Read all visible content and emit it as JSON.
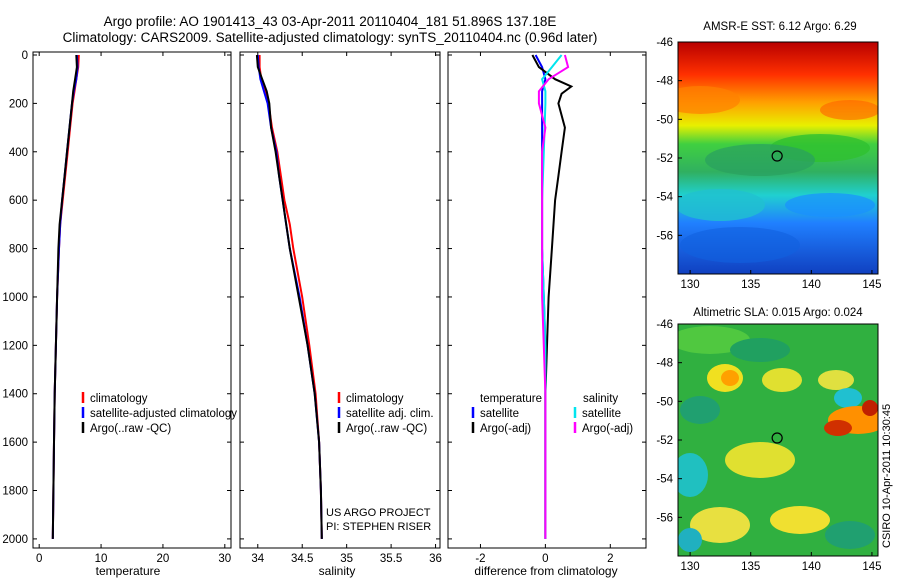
{
  "header": {
    "line1": "Argo profile: AO 1901413_43 03-Apr-2011 20110404_181 51.896S 137.18E",
    "line2": "Climatology: CARS2009. Satellite-adjusted climatology: synTS_20110404.nc (0.96d later)"
  },
  "credit": "CSIRO 10-Apr-2011 10:30:45",
  "colors": {
    "climatology": "#ff0000",
    "satellite": "#0000ff",
    "argo": "#000000",
    "sat_salinity": "#00e5ee",
    "argo_salinity": "#ff00ff"
  },
  "chart_data": [
    {
      "type": "line",
      "name": "temperature-profile",
      "xlabel": "temperature",
      "ylabel": "",
      "xlim": [
        -1,
        31
      ],
      "ylim": [
        2050,
        0
      ],
      "x_ticks": [
        0,
        10,
        20,
        30
      ],
      "y_ticks": [
        0,
        200,
        400,
        600,
        800,
        1000,
        1200,
        1400,
        1600,
        1800,
        2000
      ],
      "legend": [
        "climatology",
        "satellite-adjusted climatology",
        "Argo(..raw -QC)"
      ],
      "legend_position": "lower-right",
      "series": [
        {
          "name": "climatology",
          "color": "#ff0000",
          "points": [
            [
              6.4,
              0
            ],
            [
              6.3,
              50
            ],
            [
              6.0,
              100
            ],
            [
              5.7,
              150
            ],
            [
              5.4,
              200
            ],
            [
              5.0,
              300
            ],
            [
              4.6,
              400
            ],
            [
              4.2,
              500
            ],
            [
              3.8,
              600
            ],
            [
              3.4,
              700
            ],
            [
              3.2,
              800
            ],
            [
              2.9,
              1000
            ],
            [
              2.7,
              1200
            ],
            [
              2.5,
              1400
            ],
            [
              2.4,
              1600
            ],
            [
              2.3,
              1800
            ],
            [
              2.2,
              2000
            ]
          ]
        },
        {
          "name": "satellite-adjusted climatology",
          "color": "#0000ff",
          "points": [
            [
              6.1,
              0
            ],
            [
              6.2,
              50
            ],
            [
              6.0,
              100
            ],
            [
              5.6,
              150
            ],
            [
              5.3,
              200
            ],
            [
              4.9,
              300
            ],
            [
              4.5,
              400
            ],
            [
              4.1,
              500
            ],
            [
              3.7,
              600
            ],
            [
              3.4,
              700
            ],
            [
              3.2,
              800
            ],
            [
              2.9,
              1000
            ],
            [
              2.7,
              1200
            ],
            [
              2.5,
              1400
            ],
            [
              2.4,
              1600
            ],
            [
              2.3,
              1800
            ],
            [
              2.2,
              2000
            ]
          ]
        },
        {
          "name": "Argo(..raw -QC)",
          "color": "#000000",
          "points": [
            [
              6.0,
              0
            ],
            [
              6.1,
              50
            ],
            [
              5.8,
              100
            ],
            [
              5.5,
              150
            ],
            [
              5.3,
              200
            ],
            [
              4.9,
              300
            ],
            [
              4.5,
              400
            ],
            [
              4.1,
              500
            ],
            [
              3.7,
              600
            ],
            [
              3.3,
              700
            ],
            [
              3.1,
              800
            ],
            [
              2.9,
              1000
            ],
            [
              2.7,
              1200
            ],
            [
              2.5,
              1400
            ],
            [
              2.4,
              1600
            ],
            [
              2.3,
              1800
            ],
            [
              2.2,
              2000
            ]
          ]
        }
      ]
    },
    {
      "type": "line",
      "name": "salinity-profile",
      "xlabel": "salinity",
      "ylabel": "",
      "xlim": [
        33.8,
        36.05
      ],
      "ylim": [
        2050,
        0
      ],
      "x_ticks": [
        34,
        34.5,
        35,
        35.5,
        36
      ],
      "legend": [
        "climatology",
        "satellite adj. clim.",
        "Argo(..raw -QC)"
      ],
      "legend_position": "lower-right",
      "annotations": [
        "US ARGO PROJECT",
        "PI: STEPHEN RISER"
      ],
      "series": [
        {
          "name": "climatology",
          "color": "#ff0000",
          "points": [
            [
              34.02,
              0
            ],
            [
              34.02,
              50
            ],
            [
              34.04,
              100
            ],
            [
              34.08,
              150
            ],
            [
              34.12,
              200
            ],
            [
              34.16,
              300
            ],
            [
              34.22,
              400
            ],
            [
              34.26,
              500
            ],
            [
              34.3,
              600
            ],
            [
              34.36,
              700
            ],
            [
              34.4,
              800
            ],
            [
              34.5,
              1000
            ],
            [
              34.58,
              1200
            ],
            [
              34.65,
              1400
            ],
            [
              34.69,
              1600
            ],
            [
              34.71,
              1800
            ],
            [
              34.72,
              2000
            ]
          ]
        },
        {
          "name": "satellite adj. clim.",
          "color": "#0000ff",
          "points": [
            [
              34.0,
              0
            ],
            [
              34.01,
              50
            ],
            [
              34.03,
              100
            ],
            [
              34.07,
              150
            ],
            [
              34.11,
              200
            ],
            [
              34.15,
              300
            ],
            [
              34.21,
              400
            ],
            [
              34.24,
              500
            ],
            [
              34.28,
              600
            ],
            [
              34.32,
              700
            ],
            [
              34.36,
              800
            ],
            [
              34.47,
              1000
            ],
            [
              34.56,
              1200
            ],
            [
              34.64,
              1400
            ],
            [
              34.69,
              1600
            ],
            [
              34.71,
              1800
            ],
            [
              34.72,
              2000
            ]
          ]
        },
        {
          "name": "Argo(..raw -QC)",
          "color": "#000000",
          "points": [
            [
              33.99,
              0
            ],
            [
              34.0,
              50
            ],
            [
              34.05,
              100
            ],
            [
              34.1,
              150
            ],
            [
              34.13,
              200
            ],
            [
              34.15,
              300
            ],
            [
              34.2,
              400
            ],
            [
              34.24,
              500
            ],
            [
              34.28,
              600
            ],
            [
              34.32,
              700
            ],
            [
              34.36,
              800
            ],
            [
              34.46,
              1000
            ],
            [
              34.56,
              1200
            ],
            [
              34.64,
              1400
            ],
            [
              34.69,
              1600
            ],
            [
              34.71,
              1800
            ],
            [
              34.72,
              2000
            ]
          ]
        }
      ]
    },
    {
      "type": "line",
      "name": "difference-profile",
      "xlabel": "difference from climatology",
      "ylabel": "",
      "xlim": [
        -3,
        3.1
      ],
      "ylim": [
        2050,
        0
      ],
      "x_ticks": [
        -2,
        0,
        2
      ],
      "legend_groups": [
        {
          "heading": "temperature",
          "entries": [
            "satellite",
            "Argo(-adj)"
          ]
        },
        {
          "heading": "salinity",
          "entries": [
            "satellite",
            "Argo(-adj)"
          ]
        }
      ],
      "legend_position": "lower-center",
      "series": [
        {
          "name": "temperature satellite",
          "color": "#0000ff",
          "points": [
            [
              -0.3,
              0
            ],
            [
              -0.1,
              50
            ],
            [
              0.0,
              100
            ],
            [
              -0.1,
              150
            ],
            [
              -0.1,
              200
            ],
            [
              -0.1,
              400
            ],
            [
              -0.1,
              600
            ],
            [
              -0.1,
              800
            ],
            [
              -0.05,
              1000
            ],
            [
              0,
              1200
            ],
            [
              0,
              1400
            ],
            [
              0,
              1600
            ],
            [
              0,
              1800
            ],
            [
              0,
              2000
            ]
          ]
        },
        {
          "name": "temperature Argo(-adj)",
          "color": "#000000",
          "points": [
            [
              -0.4,
              0
            ],
            [
              -0.2,
              50
            ],
            [
              0.3,
              100
            ],
            [
              0.8,
              130
            ],
            [
              0.5,
              160
            ],
            [
              0.4,
              200
            ],
            [
              0.6,
              300
            ],
            [
              0.5,
              400
            ],
            [
              0.4,
              500
            ],
            [
              0.3,
              600
            ],
            [
              0.2,
              800
            ],
            [
              0.1,
              1000
            ],
            [
              0.05,
              1200
            ],
            [
              0,
              1400
            ],
            [
              0,
              1600
            ],
            [
              0,
              1800
            ],
            [
              0,
              2000
            ]
          ]
        },
        {
          "name": "salinity satellite",
          "color": "#00e5ee",
          "points": [
            [
              0.5,
              0
            ],
            [
              0.2,
              50
            ],
            [
              -0.1,
              100
            ],
            [
              0.0,
              150
            ],
            [
              0.0,
              200
            ],
            [
              -0.05,
              400
            ],
            [
              -0.1,
              600
            ],
            [
              -0.1,
              800
            ],
            [
              -0.05,
              1000
            ],
            [
              0,
              1200
            ],
            [
              0,
              1400
            ],
            [
              0,
              1600
            ],
            [
              0,
              1800
            ],
            [
              0,
              2000
            ]
          ]
        },
        {
          "name": "salinity Argo(-adj)",
          "color": "#ff00ff",
          "points": [
            [
              0.6,
              0
            ],
            [
              0.7,
              50
            ],
            [
              0.1,
              100
            ],
            [
              -0.2,
              150
            ],
            [
              -0.2,
              200
            ],
            [
              0.0,
              300
            ],
            [
              -0.1,
              400
            ],
            [
              -0.1,
              600
            ],
            [
              -0.1,
              800
            ],
            [
              -0.1,
              1000
            ],
            [
              -0.05,
              1200
            ],
            [
              0,
              1400
            ],
            [
              0,
              1600
            ],
            [
              0,
              1800
            ],
            [
              0,
              2000
            ]
          ]
        }
      ]
    },
    {
      "type": "heatmap",
      "name": "sst-map",
      "title": "AMSR-E SST: 6.12 Argo: 6.29",
      "xlim": [
        129,
        145.5
      ],
      "ylim": [
        -58,
        -46
      ],
      "x_ticks": [
        130,
        135,
        140,
        145
      ],
      "y_ticks": [
        -46,
        -48,
        -50,
        -52,
        -54,
        -56
      ],
      "marker": {
        "lon": 137.18,
        "lat": -51.896
      }
    },
    {
      "type": "heatmap",
      "name": "sla-map",
      "title": "Altimetric SLA: 0.015 Argo: 0.024",
      "xlim": [
        129,
        145.5
      ],
      "ylim": [
        -58,
        -46
      ],
      "x_ticks": [
        130,
        135,
        140,
        145
      ],
      "y_ticks": [
        -46,
        -48,
        -50,
        -52,
        -54,
        -56
      ],
      "marker": {
        "lon": 137.18,
        "lat": -51.896
      }
    }
  ]
}
